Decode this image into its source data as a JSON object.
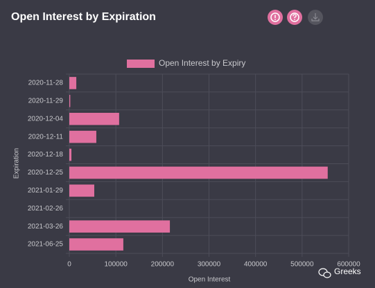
{
  "chart_data": {
    "type": "bar",
    "orientation": "horizontal",
    "title": "Open Interest by Expiration",
    "legend_label": "Open Interest by Expiry",
    "x_label": "Open Interest",
    "y_label": "Expiration",
    "categories": [
      "2020-11-28",
      "2020-11-29",
      "2020-12-04",
      "2020-12-11",
      "2020-12-18",
      "2020-12-25",
      "2021-01-29",
      "2021-02-26",
      "2021-03-26",
      "2021-06-25"
    ],
    "values": [
      15000,
      2000,
      107000,
      58000,
      4500,
      555000,
      53600,
      0,
      216000,
      116000
    ],
    "color": "#e0709f",
    "xlim": [
      0,
      600000
    ],
    "xticks": [
      0,
      100000,
      200000,
      300000,
      400000,
      500000,
      600000
    ],
    "grid": true
  },
  "watermark": "Greeks"
}
